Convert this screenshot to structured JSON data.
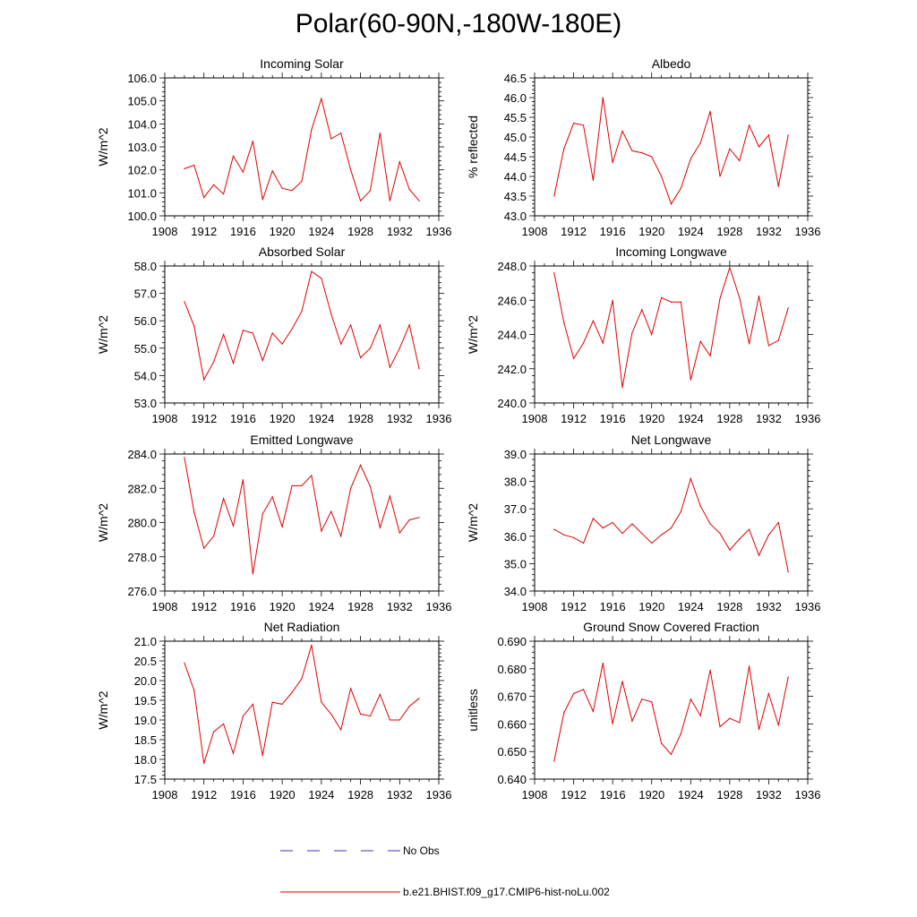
{
  "page": {
    "title": "Polar(60-90N,-180W-180E)"
  },
  "legend": {
    "items": [
      {
        "label": "No Obs",
        "color": "#3333cc",
        "style": "dashed"
      },
      {
        "label": "b.e21.BHIST.f09_g17.CMIP6-hist-noLu.002",
        "color": "#e00000",
        "style": "solid"
      }
    ]
  },
  "chart_data": [
    {
      "type": "line",
      "title": "Incoming Solar",
      "ylabel": "W/m^2",
      "xlim": [
        1908,
        1936
      ],
      "ylim": [
        100.0,
        106.0
      ],
      "xticks": [
        1908,
        1912,
        1916,
        1920,
        1924,
        1928,
        1932,
        1936
      ],
      "yticks": [
        "100.0",
        "101.0",
        "102.0",
        "103.0",
        "104.0",
        "105.0",
        "106.0"
      ],
      "series": [
        {
          "name": "b.e21.BHIST.f09_g17.CMIP6-hist-noLu.002",
          "color": "#e00000",
          "x": [
            1910,
            1911,
            1912,
            1913,
            1914,
            1915,
            1916,
            1917,
            1918,
            1919,
            1920,
            1921,
            1922,
            1923,
            1924,
            1925,
            1926,
            1927,
            1928,
            1929,
            1930,
            1931,
            1932,
            1933,
            1934
          ],
          "y": [
            102.05,
            102.2,
            100.8,
            101.35,
            100.95,
            102.6,
            101.9,
            103.25,
            100.7,
            101.95,
            101.2,
            101.1,
            101.5,
            103.75,
            105.1,
            103.35,
            103.6,
            102.0,
            100.65,
            101.1,
            103.6,
            100.65,
            102.35,
            101.15,
            100.65
          ]
        }
      ]
    },
    {
      "type": "line",
      "title": "Albedo",
      "ylabel": "% reflected",
      "xlim": [
        1908,
        1936
      ],
      "ylim": [
        43.0,
        46.5
      ],
      "xticks": [
        1908,
        1912,
        1916,
        1920,
        1924,
        1928,
        1932,
        1936
      ],
      "yticks": [
        "43.0",
        "43.5",
        "44.0",
        "44.5",
        "45.0",
        "45.5",
        "46.0",
        "46.5"
      ],
      "series": [
        {
          "name": "b.e21.BHIST.f09_g17.CMIP6-hist-noLu.002",
          "color": "#e00000",
          "x": [
            1910,
            1911,
            1912,
            1913,
            1914,
            1915,
            1916,
            1917,
            1918,
            1919,
            1920,
            1921,
            1922,
            1923,
            1924,
            1925,
            1926,
            1927,
            1928,
            1929,
            1930,
            1931,
            1932,
            1933,
            1934
          ],
          "y": [
            43.5,
            44.7,
            45.35,
            45.3,
            43.9,
            46.0,
            44.35,
            45.15,
            44.65,
            44.6,
            44.5,
            44.0,
            43.3,
            43.7,
            44.45,
            44.85,
            45.65,
            44.0,
            44.7,
            44.4,
            45.3,
            44.75,
            45.05,
            43.75,
            45.05
          ]
        }
      ]
    },
    {
      "type": "line",
      "title": "Absorbed Solar",
      "ylabel": "W/m^2",
      "xlim": [
        1908,
        1936
      ],
      "ylim": [
        53.0,
        58.0
      ],
      "xticks": [
        1908,
        1912,
        1916,
        1920,
        1924,
        1928,
        1932,
        1936
      ],
      "yticks": [
        "53.0",
        "54.0",
        "55.0",
        "56.0",
        "57.0",
        "58.0"
      ],
      "series": [
        {
          "name": "b.e21.BHIST.f09_g17.CMIP6-hist-noLu.002",
          "color": "#e00000",
          "x": [
            1910,
            1911,
            1912,
            1913,
            1914,
            1915,
            1916,
            1917,
            1918,
            1919,
            1920,
            1921,
            1922,
            1923,
            1924,
            1925,
            1926,
            1927,
            1928,
            1929,
            1930,
            1931,
            1932,
            1933,
            1934
          ],
          "y": [
            56.7,
            55.8,
            53.85,
            54.5,
            55.5,
            54.45,
            55.65,
            55.55,
            54.55,
            55.55,
            55.15,
            55.7,
            56.35,
            57.8,
            57.55,
            56.25,
            55.15,
            55.85,
            54.65,
            55.0,
            55.85,
            54.3,
            55.0,
            55.85,
            54.25
          ]
        }
      ]
    },
    {
      "type": "line",
      "title": "Incoming Longwave",
      "ylabel": "W/m^2",
      "xlim": [
        1908,
        1936
      ],
      "ylim": [
        240.0,
        248.0
      ],
      "xticks": [
        1908,
        1912,
        1916,
        1920,
        1924,
        1928,
        1932,
        1936
      ],
      "yticks": [
        "240.0",
        "242.0",
        "244.0",
        "246.0",
        "248.0"
      ],
      "series": [
        {
          "name": "b.e21.BHIST.f09_g17.CMIP6-hist-noLu.002",
          "color": "#e00000",
          "x": [
            1910,
            1911,
            1912,
            1913,
            1914,
            1915,
            1916,
            1917,
            1918,
            1919,
            1920,
            1921,
            1922,
            1923,
            1924,
            1925,
            1926,
            1927,
            1928,
            1929,
            1930,
            1931,
            1932,
            1933,
            1934
          ],
          "y": [
            247.6,
            244.7,
            242.6,
            243.5,
            244.8,
            243.5,
            246.0,
            240.9,
            244.1,
            245.45,
            244.0,
            246.15,
            245.9,
            245.9,
            241.35,
            243.6,
            242.75,
            246.1,
            247.9,
            246.15,
            243.45,
            246.25,
            243.35,
            243.65,
            245.55
          ]
        }
      ]
    },
    {
      "type": "line",
      "title": "Emitted Longwave",
      "ylabel": "W/m^2",
      "xlim": [
        1908,
        1936
      ],
      "ylim": [
        276.0,
        284.0
      ],
      "xticks": [
        1908,
        1912,
        1916,
        1920,
        1924,
        1928,
        1932,
        1936
      ],
      "yticks": [
        "276.0",
        "278.0",
        "280.0",
        "282.0",
        "284.0"
      ],
      "series": [
        {
          "name": "b.e21.BHIST.f09_g17.CMIP6-hist-noLu.002",
          "color": "#e00000",
          "x": [
            1910,
            1911,
            1912,
            1913,
            1914,
            1915,
            1916,
            1917,
            1918,
            1919,
            1920,
            1921,
            1922,
            1923,
            1924,
            1925,
            1926,
            1927,
            1928,
            1929,
            1930,
            1931,
            1932,
            1933,
            1934
          ],
          "y": [
            283.8,
            280.6,
            278.5,
            279.2,
            281.4,
            279.8,
            282.5,
            277.0,
            280.5,
            281.5,
            279.75,
            282.15,
            282.15,
            282.75,
            279.5,
            280.65,
            279.2,
            282.0,
            283.35,
            282.1,
            279.7,
            281.55,
            279.4,
            280.15,
            280.3
          ]
        }
      ]
    },
    {
      "type": "line",
      "title": "Net Longwave",
      "ylabel": "W/m^2",
      "xlim": [
        1908,
        1936
      ],
      "ylim": [
        34.0,
        39.0
      ],
      "xticks": [
        1908,
        1912,
        1916,
        1920,
        1924,
        1928,
        1932,
        1936
      ],
      "yticks": [
        "34.0",
        "35.0",
        "36.0",
        "37.0",
        "38.0",
        "39.0"
      ],
      "series": [
        {
          "name": "b.e21.BHIST.f09_g17.CMIP6-hist-noLu.002",
          "color": "#e00000",
          "x": [
            1910,
            1911,
            1912,
            1913,
            1914,
            1915,
            1916,
            1917,
            1918,
            1919,
            1920,
            1921,
            1922,
            1923,
            1924,
            1925,
            1926,
            1927,
            1928,
            1929,
            1930,
            1931,
            1932,
            1933,
            1934
          ],
          "y": [
            36.25,
            36.05,
            35.95,
            35.75,
            36.65,
            36.3,
            36.5,
            36.1,
            36.45,
            36.1,
            35.75,
            36.05,
            36.3,
            36.9,
            38.1,
            37.1,
            36.45,
            36.1,
            35.5,
            35.9,
            36.25,
            35.3,
            36.05,
            36.5,
            34.7
          ]
        }
      ]
    },
    {
      "type": "line",
      "title": "Net Radiation",
      "ylabel": "W/m^2",
      "xlim": [
        1908,
        1936
      ],
      "ylim": [
        17.5,
        21.0
      ],
      "xticks": [
        1908,
        1912,
        1916,
        1920,
        1924,
        1928,
        1932,
        1936
      ],
      "yticks": [
        "17.5",
        "18.0",
        "18.5",
        "19.0",
        "19.5",
        "20.0",
        "20.5",
        "21.0"
      ],
      "series": [
        {
          "name": "b.e21.BHIST.f09_g17.CMIP6-hist-noLu.002",
          "color": "#e00000",
          "x": [
            1910,
            1911,
            1912,
            1913,
            1914,
            1915,
            1916,
            1917,
            1918,
            1919,
            1920,
            1921,
            1922,
            1923,
            1924,
            1925,
            1926,
            1927,
            1928,
            1929,
            1930,
            1931,
            1932,
            1933,
            1934
          ],
          "y": [
            20.45,
            19.75,
            17.9,
            18.7,
            18.9,
            18.15,
            19.1,
            19.4,
            18.1,
            19.45,
            19.4,
            19.7,
            20.05,
            20.9,
            19.45,
            19.15,
            18.75,
            19.8,
            19.15,
            19.1,
            19.65,
            19.0,
            19.0,
            19.35,
            19.55
          ]
        }
      ]
    },
    {
      "type": "line",
      "title": "Ground Snow Covered Fraction",
      "ylabel": "unitless",
      "xlim": [
        1908,
        1936
      ],
      "ylim": [
        0.64,
        0.69
      ],
      "xticks": [
        1908,
        1912,
        1916,
        1920,
        1924,
        1928,
        1932,
        1936
      ],
      "yticks": [
        "0.640",
        "0.650",
        "0.660",
        "0.670",
        "0.680",
        "0.690"
      ],
      "series": [
        {
          "name": "b.e21.BHIST.f09_g17.CMIP6-hist-noLu.002",
          "color": "#e00000",
          "x": [
            1910,
            1911,
            1912,
            1913,
            1914,
            1915,
            1916,
            1917,
            1918,
            1919,
            1920,
            1921,
            1922,
            1923,
            1924,
            1925,
            1926,
            1927,
            1928,
            1929,
            1930,
            1931,
            1932,
            1933,
            1934
          ],
          "y": [
            0.6465,
            0.664,
            0.671,
            0.6725,
            0.6645,
            0.682,
            0.66,
            0.6755,
            0.661,
            0.669,
            0.668,
            0.653,
            0.649,
            0.6565,
            0.669,
            0.663,
            0.6795,
            0.659,
            0.662,
            0.6605,
            0.681,
            0.658,
            0.671,
            0.6595,
            0.677
          ]
        }
      ]
    }
  ]
}
